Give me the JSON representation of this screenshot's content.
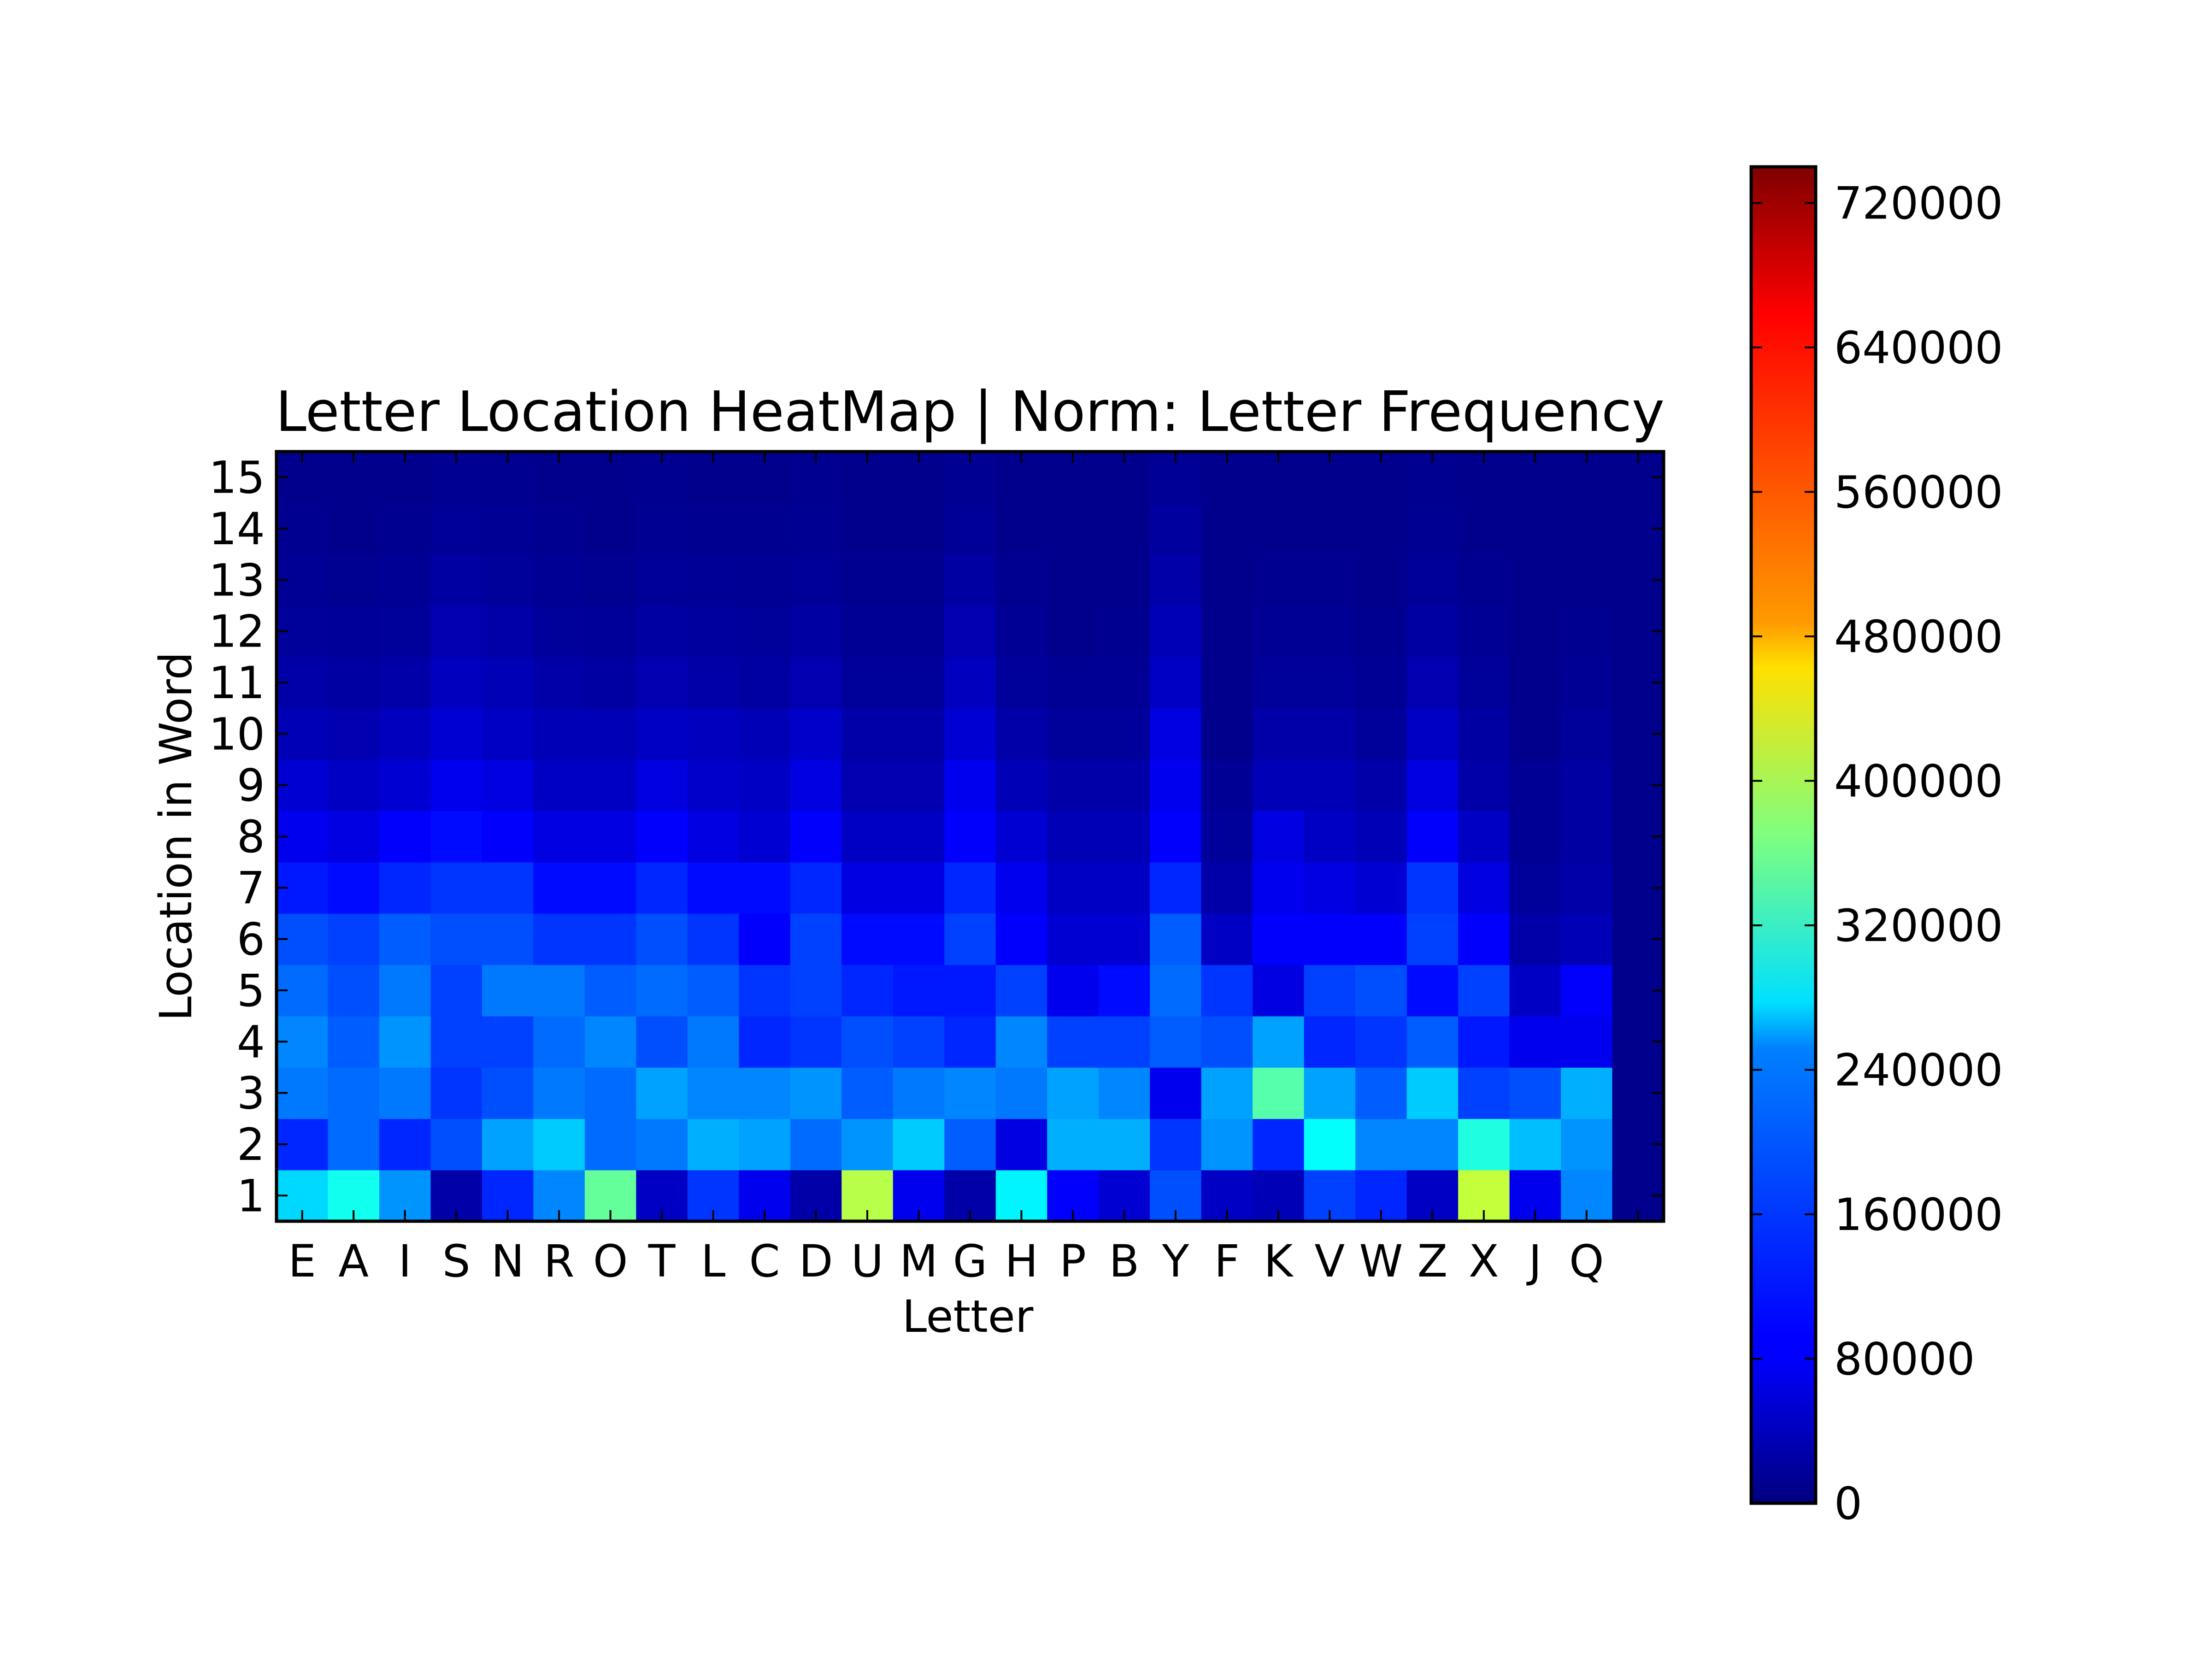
{
  "chart_data": {
    "type": "heatmap",
    "title": "Letter Location HeatMap | Norm: Letter Frequency",
    "xlabel": "Letter",
    "ylabel": "Location in Word",
    "x_categories": [
      "E",
      "A",
      "I",
      "S",
      "N",
      "R",
      "O",
      "T",
      "L",
      "C",
      "D",
      "U",
      "M",
      "G",
      "H",
      "P",
      "B",
      "Y",
      "F",
      "K",
      "V",
      "W",
      "Z",
      "X",
      "J",
      "Q",
      ""
    ],
    "y_categories": [
      "1",
      "2",
      "3",
      "4",
      "5",
      "6",
      "7",
      "8",
      "9",
      "10",
      "11",
      "12",
      "13",
      "14",
      "15"
    ],
    "colormap": "jet",
    "color_range": [
      0,
      740000
    ],
    "colorbar_ticks": [
      "0",
      "80000",
      "160000",
      "240000",
      "320000",
      "400000",
      "480000",
      "560000",
      "640000",
      "720000"
    ],
    "grid": false,
    "legend": "colorbar-right",
    "values": [
      [
        250000,
        290000,
        200000,
        30000,
        120000,
        190000,
        350000,
        50000,
        130000,
        80000,
        30000,
        410000,
        80000,
        30000,
        270000,
        90000,
        60000,
        150000,
        50000,
        40000,
        140000,
        120000,
        50000,
        420000,
        80000,
        190000,
        10000
      ],
      [
        120000,
        170000,
        120000,
        150000,
        210000,
        240000,
        170000,
        180000,
        220000,
        210000,
        170000,
        200000,
        240000,
        160000,
        70000,
        220000,
        220000,
        130000,
        200000,
        120000,
        280000,
        190000,
        190000,
        300000,
        230000,
        200000,
        10000
      ],
      [
        180000,
        170000,
        180000,
        130000,
        150000,
        180000,
        170000,
        210000,
        190000,
        190000,
        200000,
        160000,
        180000,
        190000,
        180000,
        210000,
        190000,
        80000,
        210000,
        340000,
        210000,
        160000,
        240000,
        140000,
        150000,
        220000,
        10000
      ],
      [
        190000,
        160000,
        200000,
        140000,
        140000,
        170000,
        190000,
        150000,
        180000,
        120000,
        130000,
        150000,
        140000,
        120000,
        190000,
        140000,
        140000,
        160000,
        150000,
        210000,
        120000,
        130000,
        160000,
        110000,
        80000,
        80000,
        10000
      ],
      [
        170000,
        150000,
        180000,
        140000,
        180000,
        180000,
        160000,
        170000,
        160000,
        130000,
        140000,
        120000,
        110000,
        110000,
        140000,
        80000,
        100000,
        170000,
        130000,
        70000,
        140000,
        150000,
        100000,
        140000,
        50000,
        90000,
        10000
      ],
      [
        150000,
        140000,
        160000,
        150000,
        150000,
        130000,
        130000,
        150000,
        130000,
        90000,
        140000,
        100000,
        100000,
        140000,
        90000,
        60000,
        60000,
        160000,
        50000,
        90000,
        90000,
        90000,
        140000,
        90000,
        30000,
        40000,
        10000
      ],
      [
        110000,
        100000,
        120000,
        130000,
        130000,
        100000,
        100000,
        120000,
        100000,
        100000,
        120000,
        70000,
        70000,
        120000,
        80000,
        50000,
        50000,
        120000,
        30000,
        80000,
        70000,
        60000,
        130000,
        70000,
        20000,
        30000,
        10000
      ],
      [
        80000,
        70000,
        90000,
        100000,
        90000,
        70000,
        70000,
        90000,
        70000,
        60000,
        90000,
        50000,
        50000,
        90000,
        60000,
        40000,
        40000,
        90000,
        20000,
        70000,
        50000,
        40000,
        90000,
        50000,
        15000,
        25000,
        10000
      ],
      [
        60000,
        50000,
        60000,
        80000,
        70000,
        50000,
        50000,
        70000,
        55000,
        50000,
        70000,
        35000,
        35000,
        80000,
        40000,
        30000,
        30000,
        80000,
        15000,
        40000,
        40000,
        30000,
        70000,
        30000,
        15000,
        25000,
        10000
      ],
      [
        40000,
        35000,
        45000,
        60000,
        50000,
        40000,
        40000,
        50000,
        45000,
        40000,
        55000,
        30000,
        30000,
        60000,
        30000,
        20000,
        20000,
        70000,
        10000,
        30000,
        30000,
        20000,
        50000,
        25000,
        10000,
        20000,
        10000
      ],
      [
        30000,
        25000,
        30000,
        45000,
        40000,
        30000,
        25000,
        35000,
        30000,
        25000,
        35000,
        20000,
        20000,
        45000,
        20000,
        15000,
        15000,
        50000,
        10000,
        20000,
        20000,
        15000,
        35000,
        20000,
        10000,
        15000,
        10000
      ],
      [
        20000,
        18000,
        20000,
        35000,
        30000,
        20000,
        18000,
        25000,
        22000,
        20000,
        25000,
        15000,
        15000,
        35000,
        15000,
        10000,
        12000,
        40000,
        10000,
        15000,
        15000,
        12000,
        25000,
        15000,
        10000,
        12000,
        10000
      ],
      [
        15000,
        13000,
        15000,
        25000,
        20000,
        15000,
        13000,
        18000,
        16000,
        15000,
        18000,
        12000,
        12000,
        25000,
        12000,
        10000,
        10000,
        30000,
        10000,
        12000,
        12000,
        10000,
        18000,
        12000,
        10000,
        10000,
        10000
      ],
      [
        12000,
        10000,
        12000,
        18000,
        15000,
        12000,
        10000,
        14000,
        12000,
        12000,
        14000,
        10000,
        10000,
        18000,
        10000,
        10000,
        10000,
        22000,
        10000,
        10000,
        10000,
        10000,
        14000,
        10000,
        10000,
        10000,
        10000
      ],
      [
        10000,
        10000,
        10000,
        14000,
        12000,
        10000,
        10000,
        12000,
        10000,
        10000,
        12000,
        10000,
        10000,
        14000,
        10000,
        10000,
        10000,
        16000,
        10000,
        10000,
        10000,
        10000,
        12000,
        10000,
        10000,
        10000,
        10000
      ]
    ]
  }
}
